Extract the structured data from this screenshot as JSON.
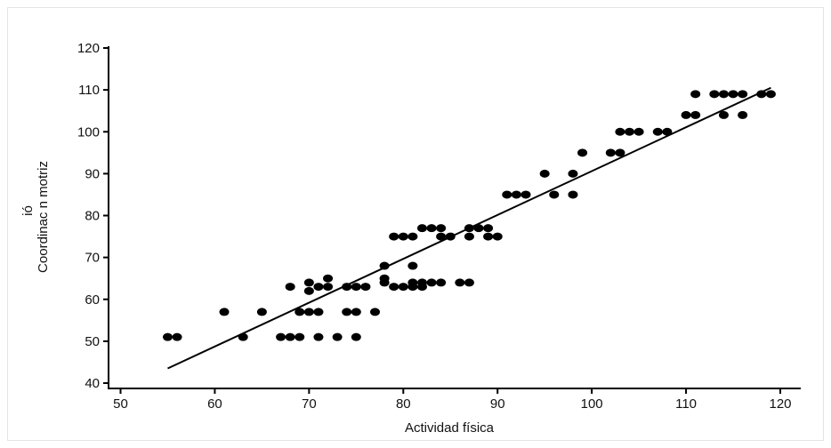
{
  "chart_data": {
    "type": "scatter",
    "title": "",
    "xlabel": "Actividad física",
    "ylabel": "Coordinac n motriz",
    "ylabel_superscript": "ió",
    "xlim": [
      50,
      120
    ],
    "ylim": [
      40,
      120
    ],
    "xticks": [
      50,
      60,
      70,
      80,
      90,
      100,
      110,
      120
    ],
    "yticks": [
      40,
      50,
      60,
      70,
      80,
      90,
      100,
      110,
      120
    ],
    "grid": false,
    "point_color": "#000000",
    "line_color": "#000000",
    "trendline": {
      "x": [
        55,
        119
      ],
      "y": [
        43.5,
        110.5
      ]
    },
    "points": {
      "x": [
        55,
        56,
        61,
        63,
        65,
        67,
        68,
        68,
        69,
        69,
        70,
        70,
        70,
        71,
        71,
        71,
        72,
        72,
        73,
        74,
        74,
        75,
        75,
        75,
        76,
        77,
        78,
        78,
        78,
        79,
        79,
        80,
        80,
        81,
        81,
        81,
        81,
        82,
        82,
        82,
        83,
        83,
        84,
        84,
        84,
        85,
        86,
        87,
        87,
        87,
        88,
        89,
        89,
        90,
        91,
        92,
        93,
        95,
        96,
        98,
        98,
        99,
        102,
        103,
        103,
        104,
        105,
        107,
        108,
        110,
        111,
        111,
        113,
        114,
        114,
        115,
        116,
        116,
        118,
        119
      ],
      "y": [
        51,
        51,
        57,
        51,
        57,
        51,
        51,
        63,
        51,
        57,
        57,
        62,
        64,
        51,
        57,
        63,
        63,
        65,
        51,
        57,
        63,
        51,
        57,
        63,
        63,
        57,
        64,
        65,
        68,
        63,
        75,
        63,
        75,
        63,
        64,
        68,
        75,
        63,
        64,
        77,
        64,
        77,
        64,
        75,
        77,
        75,
        64,
        64,
        75,
        77,
        77,
        75,
        77,
        75,
        85,
        85,
        85,
        90,
        85,
        85,
        90,
        95,
        95,
        95,
        100,
        100,
        100,
        100,
        100,
        104,
        104,
        109,
        109,
        104,
        109,
        109,
        104,
        109,
        109,
        109
      ]
    }
  }
}
